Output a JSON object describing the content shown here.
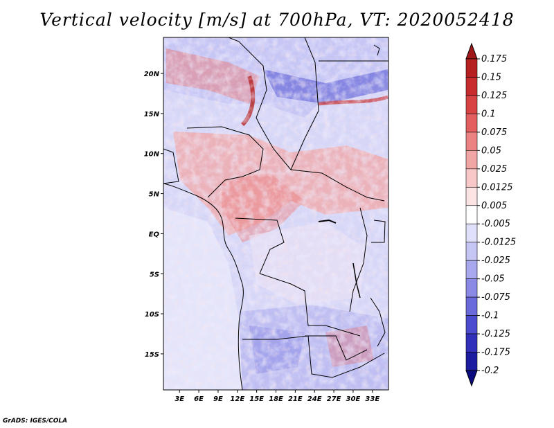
{
  "title": "Vertical velocity [m/s] at 700hPa, VT: 2020052418",
  "credit": "GrADS: IGES/COLA",
  "chart_data": {
    "type": "heatmap",
    "title": "Vertical velocity [m/s] at 700hPa, VT: 2020052418",
    "variable": "Vertical velocity",
    "units": "m/s",
    "level": "700hPa",
    "valid_time": "2020052418",
    "x_ticks": [
      "3E",
      "6E",
      "9E",
      "12E",
      "15E",
      "18E",
      "21E",
      "24E",
      "27E",
      "30E",
      "33E"
    ],
    "x_tick_values": [
      3,
      6,
      9,
      12,
      15,
      18,
      21,
      24,
      27,
      30,
      33
    ],
    "y_ticks": [
      "20N",
      "15N",
      "10N",
      "5N",
      "EQ",
      "5S",
      "10S",
      "15S"
    ],
    "y_tick_values": [
      20,
      15,
      10,
      5,
      0,
      -5,
      -10,
      -15
    ],
    "xlim": [
      0.5,
      35.5
    ],
    "ylim": [
      -19.5,
      24.5
    ],
    "colorbar_labels": [
      "0.175",
      "0.15",
      "0.125",
      "0.1",
      "0.075",
      "0.05",
      "0.025",
      "0.0125",
      "0.005",
      "-0.005",
      "-0.0125",
      "-0.025",
      "-0.05",
      "-0.075",
      "-0.1",
      "-0.125",
      "-0.175",
      "-0.2"
    ],
    "colorbar_colors": [
      "#a01818",
      "#b52020",
      "#c82d2d",
      "#d84444",
      "#e46060",
      "#ec8282",
      "#f2a5a5",
      "#f8c8c8",
      "#fce4e4",
      "#ffffff",
      "#e0e0fb",
      "#c6c6f5",
      "#a8a8ee",
      "#8a8ae6",
      "#6a6add",
      "#4b4bcf",
      "#3030bb",
      "#1c1ca0",
      "#0c0c80"
    ]
  }
}
